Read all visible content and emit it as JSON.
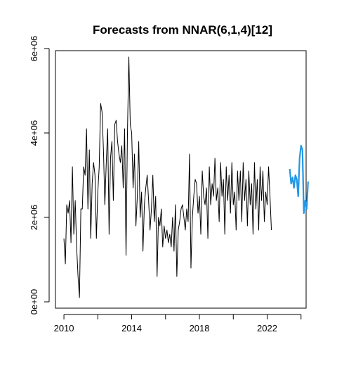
{
  "chart_data": {
    "type": "line",
    "title": "Forecasts from NNAR(6,1,4)[12]",
    "xlabel": "",
    "ylabel": "",
    "xlim": [
      2009.5,
      2024.3
    ],
    "ylim": [
      -150000,
      5950000
    ],
    "x_ticks": [
      2010,
      2014,
      2018,
      2022
    ],
    "x_tick_labels": [
      "2010",
      "2014",
      "2018",
      "2022"
    ],
    "x_minor_ticks": [
      2010,
      2012,
      2014,
      2016,
      2018,
      2020,
      2022,
      2024
    ],
    "y_ticks": [
      0,
      2000000,
      4000000,
      6000000
    ],
    "y_tick_labels": [
      "0e+00",
      "2e+06",
      "4e+06",
      "6e+06"
    ],
    "grid": false,
    "legend": "none",
    "colors": {
      "history": "#000000",
      "forecast": "#2297E6"
    },
    "series": [
      {
        "values_start": 2010.0,
        "frequency": 12,
        "values": [
          1500000,
          900000,
          2300000,
          2100000,
          2400000,
          1400000,
          3200000,
          1600000,
          2400000,
          1300000,
          600000,
          100000,
          2200000,
          2200000,
          3200000,
          3000000,
          4100000,
          2200000,
          3600000,
          1500000,
          2800000,
          3300000,
          3000000,
          1500000,
          2600000,
          3200000,
          4700000,
          4500000,
          3600000,
          2300000,
          3300000,
          4100000,
          1600000,
          3400000,
          3800000,
          2400000,
          4200000,
          4300000,
          3800000,
          3500000,
          3300000,
          3700000,
          2700000,
          4100000,
          1100000,
          4000000,
          5800000,
          4200000,
          4000000,
          2700000,
          3500000,
          1800000,
          2500000,
          3800000,
          2000000,
          2600000,
          1200000,
          2300000,
          2700000,
          3000000,
          2400000,
          1700000,
          2200000,
          3000000,
          1900000,
          2500000,
          600000,
          2000000,
          1800000,
          2200000,
          1300000,
          1800000,
          1500000,
          1700000,
          1400000,
          1600000,
          1300000,
          2000000,
          1200000,
          2300000,
          600000,
          1700000,
          1900000,
          2200000,
          2300000,
          2000000,
          1700000,
          2200000,
          1900000,
          3500000,
          800000,
          2000000,
          2500000,
          2900000,
          2800000,
          2100000,
          2500000,
          1600000,
          3100000,
          2500000,
          2300000,
          2700000,
          1500000,
          3200000,
          2300000,
          2800000,
          2500000,
          3400000,
          2400000,
          2700000,
          1900000,
          3300000,
          2500000,
          2900000,
          1600000,
          3200000,
          2400000,
          3000000,
          2100000,
          3300000,
          2300000,
          2600000,
          1700000,
          3100000,
          2400000,
          3100000,
          1900000,
          3300000,
          2400000,
          2900000,
          1800000,
          3100000,
          2300000,
          2800000,
          1600000,
          3300000,
          2200000,
          2900000,
          1700000,
          3200000,
          2400000,
          3100000,
          1900000,
          2600000,
          2300000,
          3200000,
          2500000,
          1700000
        ]
      },
      {
        "values_start": 2023.333,
        "frequency": 12,
        "values": [
          3150000,
          2800000,
          2950000,
          2700000,
          3000000,
          2900000,
          2500000,
          3400000,
          3700000,
          3600000,
          2100000,
          2400000,
          2200000,
          2850000
        ]
      }
    ]
  }
}
